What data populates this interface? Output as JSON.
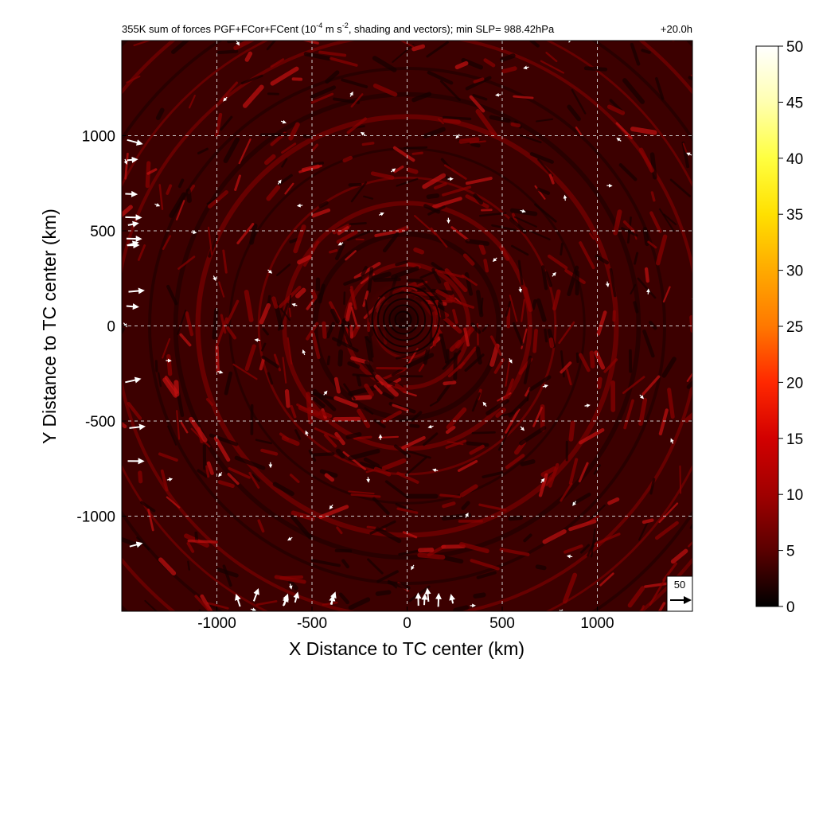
{
  "chart_data": {
    "type": "heatmap",
    "title_main": "355K sum of forces PGF+FCor+FCent (10",
    "title_exp1": "-4",
    "title_mid": " m s",
    "title_exp2": "-2",
    "title_end": ", shading and vectors); min SLP= 988.42hPa",
    "time_label": "+20.0h",
    "xlabel": "X Distance to TC center (km)",
    "ylabel": "Y Distance to TC center (km)",
    "xlim": [
      -1500,
      1500
    ],
    "ylim": [
      -1500,
      1500
    ],
    "x_ticks": [
      -1000,
      -500,
      0,
      500,
      1000
    ],
    "y_ticks": [
      -1000,
      -500,
      0,
      500,
      1000
    ],
    "x_tick_labels": [
      "-1000",
      "-500",
      "0",
      "500",
      "1000"
    ],
    "y_tick_labels": [
      "-1000",
      "-500",
      "0",
      "500",
      "1000"
    ],
    "grid": true,
    "colorbar": {
      "min": 0,
      "max": 50,
      "ticks": [
        0,
        5,
        10,
        15,
        20,
        25,
        30,
        35,
        40,
        45,
        50
      ],
      "tick_labels": [
        "0",
        "5",
        "10",
        "15",
        "20",
        "25",
        "30",
        "35",
        "40",
        "45",
        "50"
      ],
      "colors": [
        "#000000",
        "#5a0000",
        "#a00000",
        "#d20000",
        "#ff2800",
        "#ff7800",
        "#ffaa00",
        "#ffe000",
        "#ffff40",
        "#ffffb0",
        "#ffffff"
      ]
    },
    "reference_vector": {
      "label": "50"
    }
  }
}
